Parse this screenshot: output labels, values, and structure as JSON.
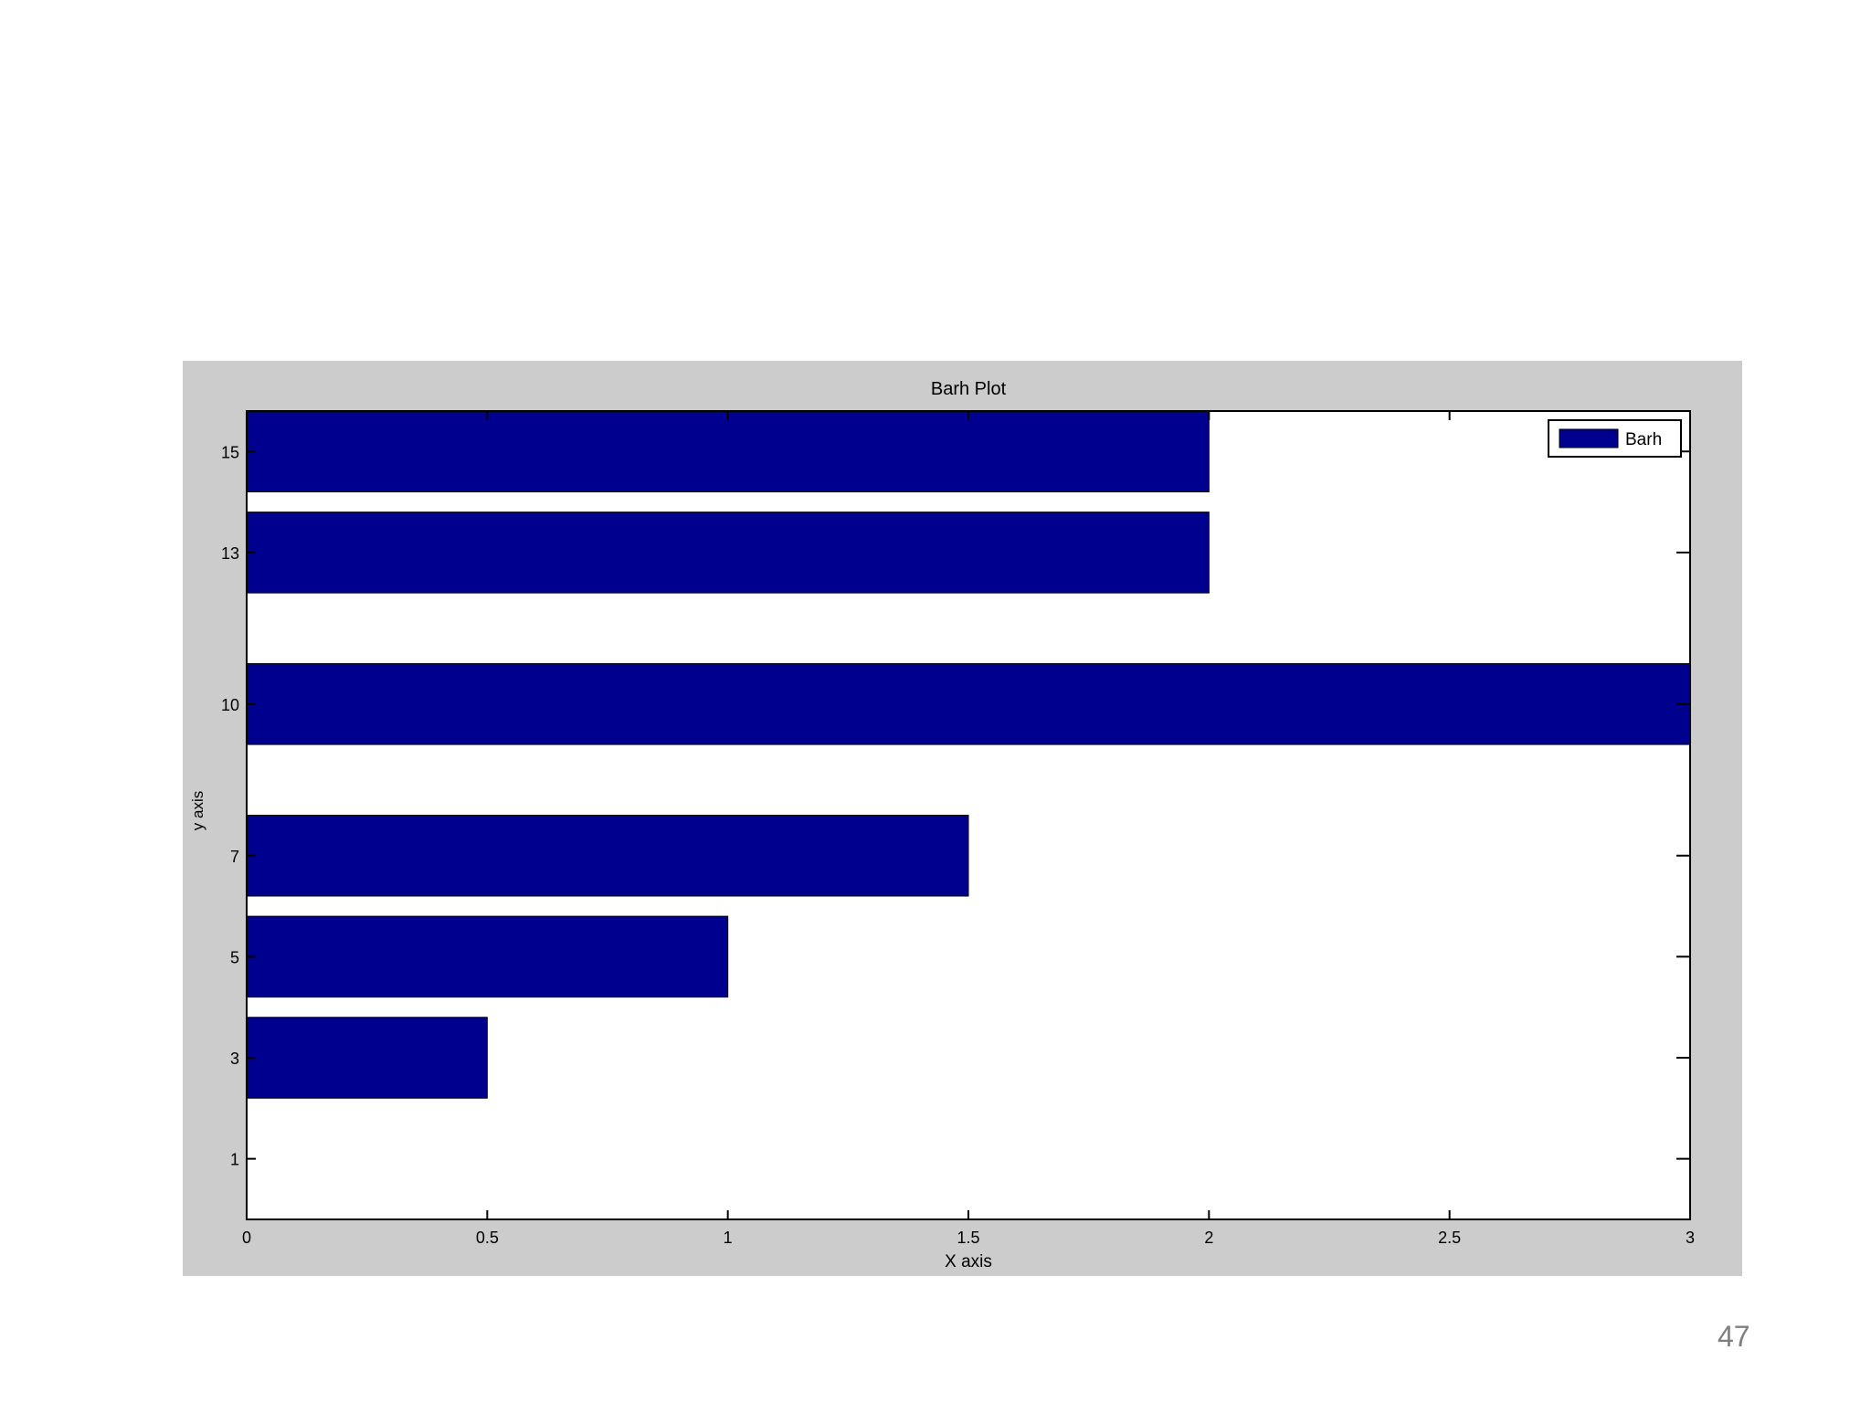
{
  "slide": {
    "page_number": "47"
  },
  "chart_data": {
    "type": "bar",
    "orientation": "horizontal",
    "title": "Barh Plot",
    "xlabel": "X axis",
    "ylabel": "y axis",
    "xlim": [
      0,
      3
    ],
    "ylim": [
      -0.2,
      15.8
    ],
    "xticks": [
      0,
      0.5,
      1,
      1.5,
      2,
      2.5,
      3
    ],
    "xtick_labels": [
      "0",
      "0.5",
      "1",
      "1.5",
      "2",
      "2.5",
      "3"
    ],
    "yticks": [
      1,
      3,
      5,
      7,
      10,
      13,
      15
    ],
    "ytick_labels": [
      "1",
      "3",
      "5",
      "7",
      "10",
      "13",
      "15"
    ],
    "grid": false,
    "legend_position": "top-right",
    "series": [
      {
        "name": "Barh",
        "color": "#00008f",
        "points": [
          {
            "y": 1,
            "x": 0
          },
          {
            "y": 3,
            "x": 0.5
          },
          {
            "y": 5,
            "x": 1
          },
          {
            "y": 7,
            "x": 1.5
          },
          {
            "y": 10,
            "x": 3
          },
          {
            "y": 13,
            "x": 2
          },
          {
            "y": 15,
            "x": 2
          }
        ]
      }
    ],
    "colors": {
      "figure_bg": "#cccccc",
      "axes_bg": "#ffffff",
      "axis": "#000000"
    }
  }
}
